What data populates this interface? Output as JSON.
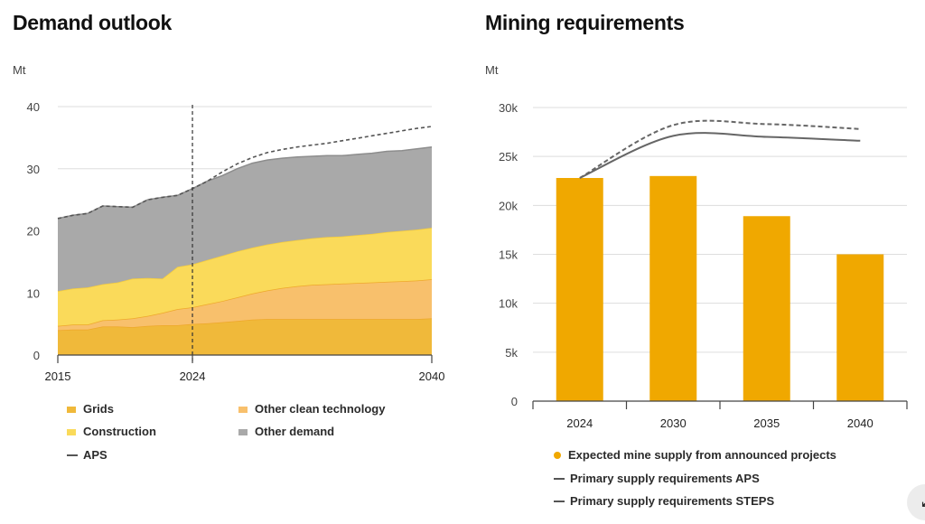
{
  "charts": {
    "left_title": "Demand outlook",
    "right_title": "Mining requirements"
  },
  "legend_left": {
    "grids": "Grids",
    "other_clean": "Other clean technology",
    "construction": "Construction",
    "other_demand": "Other demand",
    "aps": "APS"
  },
  "legend_right": {
    "mine_supply": "Expected mine supply from announced projects",
    "aps": "Primary supply requirements APS",
    "steps": "Primary supply requirements STEPS"
  },
  "colors": {
    "grids": "#F0B93A",
    "other_clean": "#F8C06C",
    "construction": "#FADA5A",
    "other_demand": "#A9A9A9",
    "bar": "#F0A800",
    "line": "#666666",
    "grid": "#dddddd",
    "axis": "#444444"
  },
  "corner_button_icon": "expand-icon",
  "chart_data": [
    {
      "type": "area",
      "title": "Demand outlook",
      "ylabel": "Mt",
      "ylim": [
        0,
        40
      ],
      "yticks": [
        "0",
        "10",
        "20",
        "30",
        "40"
      ],
      "xlim": [
        2015,
        2040
      ],
      "xticks": [
        "2015",
        "2024",
        "2040"
      ],
      "marker_year": 2024,
      "x": [
        2015,
        2016,
        2017,
        2018,
        2019,
        2020,
        2021,
        2022,
        2023,
        2024,
        2025,
        2026,
        2027,
        2028,
        2029,
        2030,
        2031,
        2032,
        2033,
        2034,
        2035,
        2036,
        2037,
        2038,
        2039,
        2040
      ],
      "series": [
        {
          "name": "Grids",
          "key": "grids",
          "values": [
            4.0,
            4.1,
            4.1,
            4.6,
            4.6,
            4.5,
            4.7,
            4.8,
            4.8,
            5.0,
            5.1,
            5.3,
            5.5,
            5.7,
            5.8,
            5.8,
            5.8,
            5.8,
            5.8,
            5.8,
            5.8,
            5.8,
            5.8,
            5.8,
            5.8,
            5.9
          ]
        },
        {
          "name": "Other clean technology",
          "key": "other_clean",
          "values": [
            0.7,
            0.8,
            0.8,
            1.0,
            1.1,
            1.4,
            1.6,
            2.0,
            2.6,
            2.7,
            3.1,
            3.4,
            3.8,
            4.2,
            4.6,
            5.0,
            5.3,
            5.5,
            5.6,
            5.7,
            5.8,
            5.9,
            6.0,
            6.1,
            6.2,
            6.3
          ]
        },
        {
          "name": "Construction",
          "key": "construction",
          "values": [
            5.6,
            5.8,
            6.0,
            5.8,
            6.0,
            6.4,
            6.1,
            5.5,
            6.8,
            6.9,
            7.1,
            7.3,
            7.4,
            7.4,
            7.4,
            7.4,
            7.4,
            7.5,
            7.6,
            7.6,
            7.7,
            7.8,
            8.0,
            8.1,
            8.2,
            8.3
          ]
        },
        {
          "name": "Other demand",
          "key": "other_demand",
          "values": [
            11.7,
            11.8,
            11.9,
            12.6,
            12.2,
            11.5,
            12.6,
            13.1,
            11.5,
            12.2,
            12.7,
            12.9,
            13.3,
            13.6,
            13.6,
            13.5,
            13.4,
            13.2,
            13.1,
            13.0,
            13.0,
            13.0,
            13.0,
            12.9,
            13.0,
            13.0
          ]
        }
      ],
      "aps": {
        "name": "APS",
        "x": [
          2015,
          2016,
          2017,
          2018,
          2019,
          2020,
          2021,
          2022,
          2023,
          2024,
          2025,
          2026,
          2027,
          2028,
          2029,
          2030,
          2031,
          2032,
          2033,
          2034,
          2035,
          2036,
          2037,
          2038,
          2039,
          2040
        ],
        "values": [
          22.0,
          22.5,
          22.8,
          24.0,
          23.9,
          23.8,
          25.0,
          25.4,
          25.7,
          26.8,
          28.0,
          29.5,
          30.8,
          31.8,
          32.6,
          33.1,
          33.5,
          33.8,
          34.1,
          34.5,
          34.9,
          35.3,
          35.7,
          36.1,
          36.5,
          36.8
        ]
      }
    },
    {
      "type": "bar",
      "title": "Mining requirements",
      "ylabel": "Mt",
      "ylim": [
        0,
        30000
      ],
      "yticks": [
        "0",
        "5k",
        "10k",
        "15k",
        "20k",
        "25k",
        "30k"
      ],
      "categories": [
        "2024",
        "2030",
        "2035",
        "2040"
      ],
      "series": [
        {
          "name": "Expected mine supply from announced projects",
          "values": [
            22800,
            23000,
            18900,
            15000
          ]
        }
      ],
      "lines": [
        {
          "name": "Primary supply requirements APS",
          "style": "dashed",
          "values": [
            22800,
            28200,
            28300,
            27800
          ]
        },
        {
          "name": "Primary supply requirements STEPS",
          "style": "solid",
          "values": [
            22800,
            27100,
            27000,
            26600
          ]
        }
      ]
    }
  ]
}
